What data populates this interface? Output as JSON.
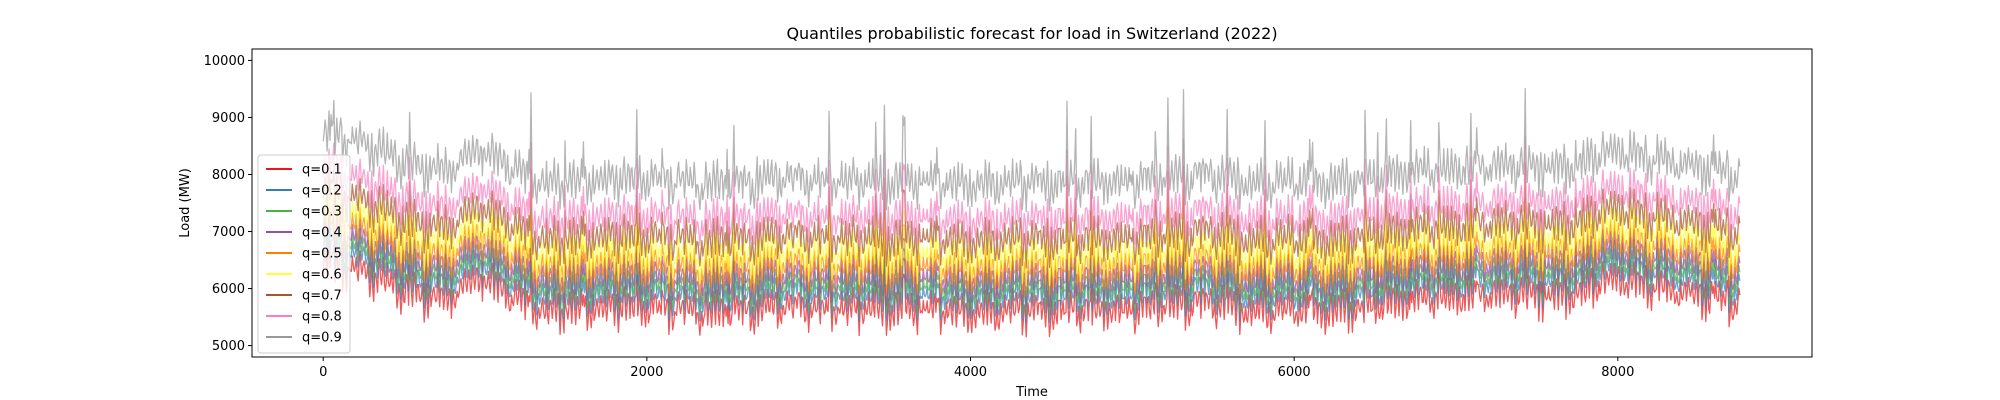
{
  "chart_data": {
    "type": "line",
    "title": "Quantiles probabilistic forecast for load in Switzerland (2022)",
    "xlabel": "Time",
    "ylabel": "Load (MW)",
    "xlim": [
      -440,
      9200
    ],
    "ylim": [
      4800,
      10200
    ],
    "xticks": [
      0,
      2000,
      4000,
      6000,
      8000
    ],
    "yticks": [
      5000,
      6000,
      7000,
      8000,
      9000,
      10000
    ],
    "legend_position": "lower-left",
    "n_points": 8760,
    "series": [
      {
        "name": "q=0.1",
        "color": "#e41a1c",
        "level": [
          6500,
          6400,
          6200,
          5950,
          5900,
          6300,
          5900,
          5650,
          5700,
          5750,
          5700,
          5700,
          5650,
          5650,
          5700,
          5750,
          5700,
          5700,
          5700,
          5700,
          5650,
          5650,
          5700,
          5650,
          5700,
          5650,
          5700,
          5800,
          5800,
          5700,
          5650,
          5700,
          5650,
          5700,
          5800,
          5900,
          5950,
          5950,
          5950,
          5950,
          6000,
          6250,
          6100,
          6000,
          5900,
          5800
        ],
        "amp": 400,
        "spike": 260
      },
      {
        "name": "q=0.2",
        "color": "#377eb8",
        "level": [
          6750,
          6650,
          6450,
          6200,
          6150,
          6550,
          6150,
          5900,
          5950,
          6000,
          5950,
          5950,
          5900,
          5900,
          5950,
          6000,
          5950,
          5950,
          5950,
          5950,
          5900,
          5900,
          5950,
          5900,
          5950,
          5900,
          5950,
          6050,
          6050,
          5950,
          5900,
          5950,
          5900,
          5950,
          6050,
          6150,
          6200,
          6200,
          6200,
          6200,
          6250,
          6500,
          6350,
          6250,
          6150,
          6050
        ],
        "amp": 400,
        "spike": 300
      },
      {
        "name": "q=0.3",
        "color": "#4daf4a",
        "level": [
          6900,
          6800,
          6600,
          6350,
          6300,
          6700,
          6300,
          6050,
          6100,
          6150,
          6100,
          6100,
          6050,
          6050,
          6100,
          6150,
          6100,
          6100,
          6100,
          6100,
          6050,
          6050,
          6100,
          6050,
          6100,
          6050,
          6100,
          6200,
          6200,
          6100,
          6050,
          6100,
          6050,
          6100,
          6200,
          6300,
          6350,
          6350,
          6350,
          6350,
          6400,
          6650,
          6500,
          6400,
          6300,
          6200
        ],
        "amp": 400,
        "spike": 320
      },
      {
        "name": "q=0.4",
        "color": "#984ea3",
        "level": [
          7050,
          6950,
          6750,
          6500,
          6450,
          6850,
          6450,
          6200,
          6250,
          6300,
          6250,
          6250,
          6200,
          6200,
          6250,
          6300,
          6250,
          6250,
          6250,
          6250,
          6200,
          6200,
          6250,
          6200,
          6250,
          6200,
          6250,
          6350,
          6350,
          6250,
          6200,
          6250,
          6200,
          6250,
          6350,
          6450,
          6500,
          6500,
          6500,
          6500,
          6550,
          6800,
          6650,
          6550,
          6450,
          6350
        ],
        "amp": 420,
        "spike": 340
      },
      {
        "name": "q=0.5",
        "color": "#ff7f00",
        "level": [
          7250,
          7150,
          6950,
          6700,
          6650,
          7050,
          6650,
          6400,
          6450,
          6500,
          6450,
          6450,
          6400,
          6400,
          6450,
          6500,
          6450,
          6450,
          6450,
          6450,
          6400,
          6400,
          6450,
          6400,
          6450,
          6400,
          6450,
          6550,
          6550,
          6450,
          6400,
          6450,
          6400,
          6450,
          6550,
          6650,
          6700,
          6700,
          6700,
          6700,
          6750,
          7000,
          6850,
          6750,
          6650,
          6550
        ],
        "amp": 430,
        "spike": 380
      },
      {
        "name": "q=0.6",
        "color": "#ffff33",
        "level": [
          7450,
          7350,
          7150,
          6900,
          6850,
          7250,
          6850,
          6600,
          6650,
          6700,
          6650,
          6650,
          6600,
          6600,
          6650,
          6700,
          6650,
          6650,
          6650,
          6650,
          6600,
          6600,
          6650,
          6600,
          6650,
          6600,
          6650,
          6750,
          6750,
          6650,
          6600,
          6650,
          6600,
          6650,
          6750,
          6850,
          6900,
          6900,
          6900,
          6900,
          6950,
          7200,
          7050,
          6950,
          6850,
          6750
        ],
        "amp": 440,
        "spike": 420
      },
      {
        "name": "q=0.7",
        "color": "#a65628",
        "level": [
          7750,
          7650,
          7450,
          7200,
          7150,
          7550,
          7150,
          6900,
          6950,
          7000,
          6950,
          6950,
          6900,
          6900,
          6950,
          7000,
          6950,
          6950,
          6950,
          6950,
          6900,
          6900,
          6950,
          6900,
          6950,
          6900,
          6950,
          7050,
          7050,
          6950,
          6900,
          6950,
          6900,
          6950,
          7050,
          7150,
          7200,
          7200,
          7200,
          7200,
          7250,
          7500,
          7350,
          7250,
          7150,
          7050
        ],
        "amp": 430,
        "spike": 480
      },
      {
        "name": "q=0.8",
        "color": "#f781bf",
        "level": [
          8100,
          8000,
          7800,
          7550,
          7500,
          7900,
          7500,
          7250,
          7300,
          7350,
          7300,
          7300,
          7250,
          7250,
          7300,
          7350,
          7300,
          7300,
          7300,
          7300,
          7250,
          7250,
          7300,
          7250,
          7300,
          7250,
          7300,
          7400,
          7400,
          7300,
          7250,
          7300,
          7250,
          7300,
          7400,
          7500,
          7550,
          7550,
          7550,
          7550,
          7600,
          7850,
          7700,
          7600,
          7500,
          7400
        ],
        "amp": 420,
        "spike": 560
      },
      {
        "name": "q=0.9",
        "color": "#999999",
        "level": [
          8750,
          8650,
          8450,
          8200,
          8150,
          8550,
          8150,
          7900,
          7950,
          8000,
          7950,
          7950,
          7900,
          7900,
          7950,
          8000,
          7950,
          7950,
          7950,
          7950,
          7900,
          7900,
          7950,
          7900,
          7950,
          7900,
          7950,
          8050,
          8050,
          7950,
          7900,
          7950,
          7900,
          7950,
          8050,
          8150,
          8200,
          8200,
          8200,
          8200,
          8250,
          8500,
          8350,
          8250,
          8150,
          8050
        ],
        "amp": 440,
        "spike": 700
      }
    ]
  }
}
